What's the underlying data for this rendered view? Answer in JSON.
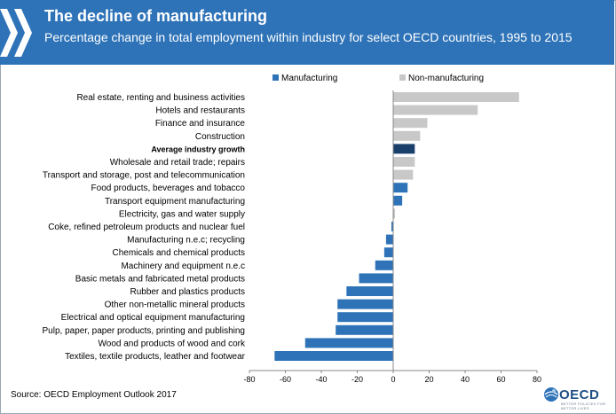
{
  "header": {
    "title": "The decline of manufacturing",
    "subtitle": "Percentage change in total employment within industry for select OECD countries, 1995 to 2015"
  },
  "source": "Source: OECD Employment Outlook 2017",
  "logo": {
    "text": "OECD",
    "tagline": "BETTER POLICIES FOR BETTER LIVES"
  },
  "colors": {
    "header_bg": "#2e73b8",
    "manufacturing": "#2e73b8",
    "non_manufacturing": "#c8c8c8",
    "average": "#1a3f6b"
  },
  "chart_data": {
    "type": "bar",
    "orientation": "horizontal",
    "title": "The decline of manufacturing",
    "xlabel": "",
    "ylabel": "",
    "xlim": [
      -80,
      80
    ],
    "xticks": [
      -80,
      -60,
      -40,
      -20,
      0,
      20,
      40,
      60,
      80
    ],
    "legend": {
      "placement": "top",
      "entries": [
        {
          "label": "Manufacturing",
          "group": "manufacturing"
        },
        {
          "label": "Non-manufacturing",
          "group": "non_manufacturing"
        }
      ]
    },
    "categories": [
      "Real estate, renting and business activities",
      "Hotels and restaurants",
      "Finance and insurance",
      "Construction",
      "Average industry growth",
      "Wholesale and retail trade; repairs",
      "Transport and storage, post and telecommunication",
      "Food products, beverages and tobacco",
      "Transport equipment manufacturing",
      "Electricity, gas and water supply",
      "Coke, refined petroleum products and nuclear fuel",
      "Manufacturing n.e.c; recycling",
      "Chemicals and chemical products",
      "Machinery and equipment n.e.c",
      "Basic metals and fabricated metal products",
      "Rubber and plastics products",
      "Other non-metallic mineral products",
      "Electrical and optical equipment manufacturing",
      "Pulp, paper, paper products, printing and publishing",
      "Wood and products of wood and cork",
      "Textiles, textile products, leather and footwear"
    ],
    "values": [
      70,
      47,
      19,
      15,
      12,
      12,
      11,
      8,
      5,
      1,
      -1,
      -4,
      -5,
      -10,
      -19,
      -26,
      -31,
      -31,
      -32,
      -49,
      -66
    ],
    "groups": [
      "non_manufacturing",
      "non_manufacturing",
      "non_manufacturing",
      "non_manufacturing",
      "average",
      "non_manufacturing",
      "non_manufacturing",
      "manufacturing",
      "manufacturing",
      "non_manufacturing",
      "manufacturing",
      "manufacturing",
      "manufacturing",
      "manufacturing",
      "manufacturing",
      "manufacturing",
      "manufacturing",
      "manufacturing",
      "manufacturing",
      "manufacturing",
      "manufacturing"
    ],
    "bold_categories": [
      "Average industry growth"
    ]
  }
}
